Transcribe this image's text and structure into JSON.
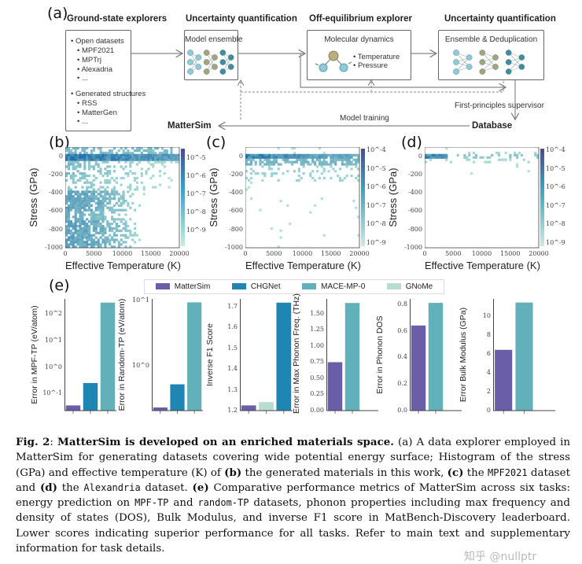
{
  "panel_a": {
    "label": "(a)",
    "titles": [
      "Ground-state explorers",
      "Uncertainty quantification",
      "Off-equilibrium explorer",
      "Uncertainty quantification"
    ],
    "explorers": {
      "open_datasets": "Open datasets",
      "open_items": [
        "MPF2021",
        "MPTrj",
        "Alexadria",
        "..."
      ],
      "generated": "Generated structures",
      "generated_items": [
        "RSS",
        "MatterGen",
        "..."
      ]
    },
    "model_ensemble": "Model ensemble",
    "molecular_dynamics": "Molecular dynamics",
    "md_items": [
      "Temperature",
      "Pressure"
    ],
    "ensemble_dedup": "Ensemble & Deduplication",
    "first_principles": "First-principles supervisor",
    "model_training": "Model training",
    "mattersim": "MatterSim",
    "database": "Database",
    "colors": {
      "light": "#8fcad8",
      "olive": "#a8a27a",
      "dark": "#3e8c9c"
    }
  },
  "histograms": [
    {
      "label": "(b)",
      "xlabel": "Effective Temperature (K)",
      "ylabel": "Stress (GPa)",
      "xlim": [
        0,
        20000
      ],
      "ylim": [
        -1000,
        100
      ],
      "xticks": [
        "0",
        "5000",
        "10000",
        "15000",
        "20000"
      ],
      "yticks": [
        "0",
        "-200",
        "-400",
        "-600",
        "-800",
        "-1000"
      ],
      "cbar_ticks": [
        "10^-5",
        "10^-6",
        "10^-7",
        "10^-8",
        "10^-9"
      ],
      "type": "heatmap"
    },
    {
      "label": "(c)",
      "xlabel": "Effective Temperature (K)",
      "ylabel": "Stress (GPa)",
      "xlim": [
        0,
        20000
      ],
      "ylim": [
        -1000,
        100
      ],
      "xticks": [
        "0",
        "5000",
        "10000",
        "15000",
        "20000"
      ],
      "yticks": [
        "0",
        "-200",
        "-400",
        "-600",
        "-800",
        "-1000"
      ],
      "cbar_ticks": [
        "10^-4",
        "10^-5",
        "10^-6",
        "10^-7",
        "10^-8",
        "10^-9"
      ],
      "type": "heatmap"
    },
    {
      "label": "(d)",
      "xlabel": "Effective Temperature (K)",
      "ylabel": "Stress (GPa)",
      "xlim": [
        0,
        20000
      ],
      "ylim": [
        -1000,
        100
      ],
      "xticks": [
        "0",
        "5000",
        "10000",
        "15000",
        "20000"
      ],
      "yticks": [
        "0",
        "-200",
        "-400",
        "-600",
        "-800",
        "-1000"
      ],
      "cbar_ticks": [
        "10^-4",
        "10^-5",
        "10^-6",
        "10^-7",
        "10^-8",
        "10^-9"
      ],
      "type": "heatmap"
    }
  ],
  "panel_e": {
    "label": "(e)",
    "legend": [
      {
        "name": "MatterSim",
        "color": "#6b5ea8"
      },
      {
        "name": "CHGNet",
        "color": "#1f86b4"
      },
      {
        "name": "MACE-MP-0",
        "color": "#62b1ba"
      },
      {
        "name": "GNoMe",
        "color": "#b8ddd0"
      }
    ]
  },
  "chart_data": [
    {
      "type": "bar",
      "ylabel": "Error in MPF-TP (eV/atom)",
      "scale": "log",
      "ylim": [
        0.023,
        360
      ],
      "yticks": [
        {
          "v": 0.1,
          "t": "10^-1"
        },
        {
          "v": 1,
          "t": "10^0"
        },
        {
          "v": 10,
          "t": "10^1"
        },
        {
          "v": 100,
          "t": "10^2"
        }
      ],
      "bars": [
        {
          "series": "MatterSim",
          "value": 0.036
        },
        {
          "series": "CHGNet",
          "value": 0.25
        },
        {
          "series": "MACE-MP-0",
          "value": 262
        }
      ]
    },
    {
      "type": "bar",
      "ylabel": "Error in Random-TP (eV/atom)",
      "scale": "log",
      "ylim": [
        0.206,
        10.5
      ],
      "yticks": [
        {
          "v": 1,
          "t": "10^0"
        },
        {
          "v": 10,
          "t": "10^1"
        }
      ],
      "bars": [
        {
          "series": "MatterSim",
          "value": 0.23
        },
        {
          "series": "CHGNet",
          "value": 0.52
        },
        {
          "series": "MACE-MP-0",
          "value": 9.3
        }
      ]
    },
    {
      "type": "bar",
      "ylabel": "Inverse F1 Score",
      "scale": "linear",
      "ylim": [
        1.2,
        1.737
      ],
      "yticks": [
        {
          "v": 1.2,
          "t": "1.2"
        },
        {
          "v": 1.3,
          "t": "1.3"
        },
        {
          "v": 1.4,
          "t": "1.4"
        },
        {
          "v": 1.5,
          "t": "1.5"
        },
        {
          "v": 1.6,
          "t": "1.6"
        },
        {
          "v": 1.7,
          "t": "1.7"
        }
      ],
      "bars": [
        {
          "series": "MatterSim",
          "value": 1.225
        },
        {
          "series": "GNoMe",
          "value": 1.241
        },
        {
          "series": "CHGNet",
          "value": 1.719
        }
      ]
    },
    {
      "type": "bar",
      "ylabel": "Error in Max Phonon Freq. (THz)",
      "scale": "linear",
      "ylim": [
        0,
        1.73
      ],
      "yticks": [
        {
          "v": 0,
          "t": "0.00"
        },
        {
          "v": 0.25,
          "t": "0.25"
        },
        {
          "v": 0.5,
          "t": "0.50"
        },
        {
          "v": 0.75,
          "t": "0.75"
        },
        {
          "v": 1.0,
          "t": "1.00"
        },
        {
          "v": 1.25,
          "t": "1.25"
        },
        {
          "v": 1.5,
          "t": "1.50"
        }
      ],
      "bars": [
        {
          "series": "MatterSim",
          "value": 0.75
        },
        {
          "series": "MACE-MP-0",
          "value": 1.667
        }
      ]
    },
    {
      "type": "bar",
      "ylabel": "Error in Phonon DOS",
      "scale": "linear",
      "ylim": [
        0,
        0.84
      ],
      "yticks": [
        {
          "v": 0,
          "t": "0.0"
        },
        {
          "v": 0.2,
          "t": "0.2"
        },
        {
          "v": 0.4,
          "t": "0.4"
        },
        {
          "v": 0.6,
          "t": "0.6"
        },
        {
          "v": 0.8,
          "t": "0.8"
        }
      ],
      "bars": [
        {
          "series": "MatterSim",
          "value": 0.64
        },
        {
          "series": "MACE-MP-0",
          "value": 0.81
        }
      ]
    },
    {
      "type": "bar",
      "ylabel": "Error Bulk Modulus (GPa)",
      "scale": "linear",
      "ylim": [
        0,
        11.8
      ],
      "yticks": [
        {
          "v": 0,
          "t": "0"
        },
        {
          "v": 2,
          "t": "2"
        },
        {
          "v": 4,
          "t": "4"
        },
        {
          "v": 6,
          "t": "6"
        },
        {
          "v": 8,
          "t": "8"
        },
        {
          "v": 10,
          "t": "10"
        }
      ],
      "bars": [
        {
          "series": "MatterSim",
          "value": 6.42
        },
        {
          "series": "MACE-MP-0",
          "value": 11.42
        }
      ]
    }
  ],
  "caption": {
    "fig": "Fig. 2",
    "sep": ": ",
    "title": "MatterSim is developed on an enriched materials space.",
    "t1": " (a) A data explorer employed in MatterSim for generating datasets covering wide potential energy surface; Histogram of the stress (GPa) and effective temperature (K) of ",
    "b": "(b)",
    "t2": " the generated materials in this work, ",
    "c": "(c)",
    "t3": " the ",
    "mpf2021": "MPF2021",
    "t4": " dataset and ",
    "d": "(d)",
    "t5": " the ",
    "alexandria": "Alexandria",
    "t6": " dataset. ",
    "e": "(e)",
    "t7": " Comparative performance metrics of MatterSim across six tasks: energy prediction on ",
    "mpftp": "MPF-TP",
    "t8": " and ",
    "randomtp": "random-TP",
    "t9": " datasets, phonon properties including max frequency and density of states (DOS), Bulk Modulus, and inverse F1 score in MatBench-Discovery leaderboard. Lower scores indicating superior performance for all tasks. Refer to main text and supplementary information for task details."
  },
  "watermark": "知乎 @nullptr"
}
